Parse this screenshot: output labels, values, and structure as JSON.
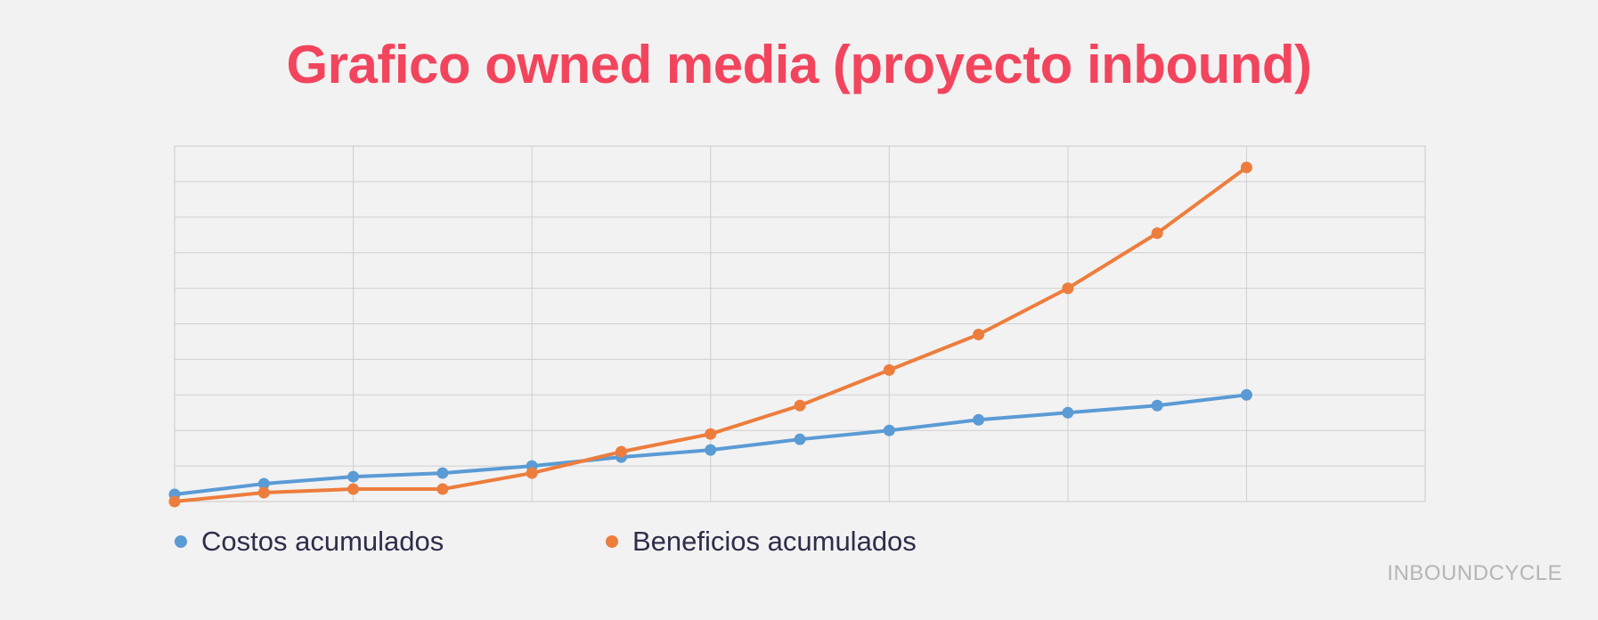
{
  "chart_data": {
    "type": "line",
    "title": "Grafico owned media (proyecto inbound)",
    "xlabel": "",
    "ylabel": "",
    "x": [
      0,
      1,
      2,
      3,
      4,
      5,
      6,
      7,
      8,
      9,
      10,
      11,
      12
    ],
    "xlim": [
      0,
      14
    ],
    "ylim": [
      0,
      10
    ],
    "grid": true,
    "legend_position": "bottom-left",
    "series": [
      {
        "name": "Costos acumulados",
        "color": "#5b9bd5",
        "values": [
          0.2,
          0.5,
          0.7,
          0.8,
          1.0,
          1.25,
          1.45,
          1.75,
          2.0,
          2.3,
          2.5,
          2.7,
          3.0
        ]
      },
      {
        "name": "Beneficios acumulados",
        "color": "#ed7d3d",
        "values": [
          0.0,
          0.25,
          0.35,
          0.35,
          0.8,
          1.4,
          1.9,
          2.7,
          3.7,
          4.7,
          6.0,
          7.55,
          9.4
        ]
      }
    ]
  },
  "brand": {
    "name": "INBOUNDCYCLE"
  }
}
